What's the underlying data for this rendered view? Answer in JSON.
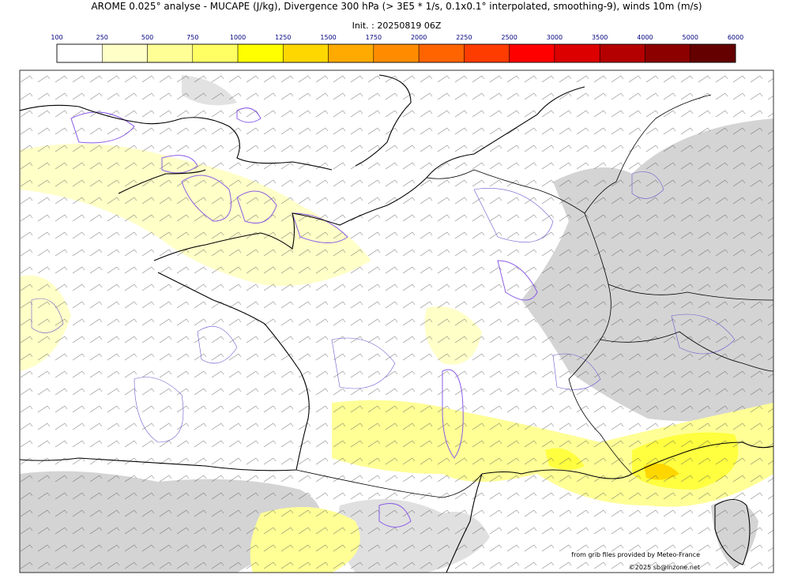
{
  "header": {
    "title": "AROME 0.025° analyse - MUCAPE (J/kg), Divergence 300 hPa (> 3E5 * 1/s, 0.1x0.1° interpolated, smoothing-9), winds 10m (m/s)",
    "init": "Init. : 20250819 06Z"
  },
  "colorbar": {
    "labels": [
      100,
      250,
      500,
      750,
      1000,
      1250,
      1500,
      1750,
      2000,
      2250,
      2500,
      3000,
      3500,
      4000,
      5000,
      6000
    ],
    "colors": [
      "#ffffff",
      "#ffffc8",
      "#ffff96",
      "#ffff64",
      "#ffff00",
      "#ffd700",
      "#ffaa00",
      "#ff8c00",
      "#ff6400",
      "#ff3c00",
      "#ff0000",
      "#dc0000",
      "#b40000",
      "#8c0000",
      "#640000"
    ]
  },
  "credits": [
    "from grib files provided by Meteo-France",
    "©2025 sb@inzone.net"
  ]
}
